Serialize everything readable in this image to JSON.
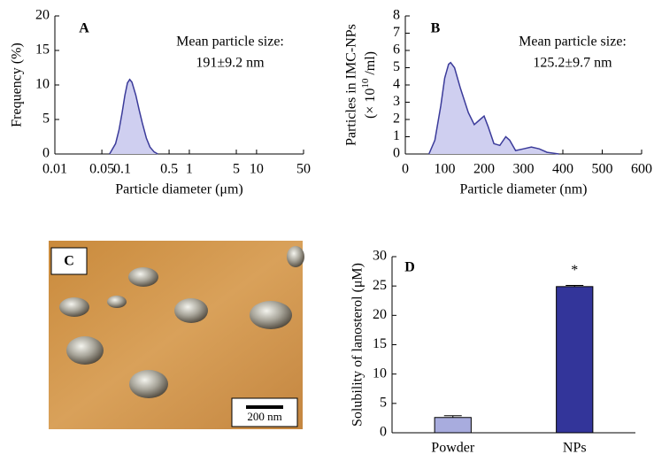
{
  "chart_data": [
    {
      "type": "area",
      "label": "A",
      "annotation": [
        "Mean particle size:",
        "191±9.2 nm"
      ],
      "xlabel": "Particle diameter (μm)",
      "ylabel": "Frequency (%)",
      "xscale": "log",
      "xlim": [
        0.01,
        50
      ],
      "xticks": [
        0.01,
        0.05,
        0.1,
        0.5,
        1,
        5,
        10,
        50
      ],
      "ylim": [
        0,
        20
      ],
      "yticks": [
        0,
        5,
        10,
        15,
        20
      ],
      "color": "#cfcff0",
      "line_color": "#3b3b9a",
      "x": [
        0.065,
        0.08,
        0.09,
        0.1,
        0.11,
        0.12,
        0.13,
        0.14,
        0.16,
        0.18,
        0.2,
        0.23,
        0.26,
        0.3,
        0.34
      ],
      "values": [
        0,
        1.5,
        3.5,
        6,
        8.5,
        10.3,
        10.8,
        10.4,
        8.5,
        6.3,
        4.5,
        2.3,
        1,
        0.3,
        0
      ]
    },
    {
      "type": "area",
      "label": "B",
      "annotation": [
        "Mean particle size:",
        "125.2±9.7 nm"
      ],
      "xlabel": "Particle diameter (nm)",
      "ylabel": "Particles in IMC-NPs",
      "ylabel_2": {
        "base": "(× 10",
        "sup": "10",
        "rest": " /ml)"
      },
      "xlim": [
        0,
        600
      ],
      "xticks": [
        0,
        100,
        200,
        300,
        400,
        500,
        600
      ],
      "ylim": [
        0,
        8
      ],
      "yticks": [
        0,
        1,
        2,
        3,
        4,
        5,
        6,
        7,
        8
      ],
      "color": "#cfcff0",
      "line_color": "#3b3b9a",
      "x": [
        60,
        75,
        90,
        100,
        110,
        115,
        125,
        140,
        160,
        175,
        190,
        200,
        210,
        225,
        240,
        255,
        265,
        280,
        300,
        320,
        340,
        360,
        390
      ],
      "values": [
        0,
        0.8,
        2.8,
        4.4,
        5.2,
        5.3,
        5.0,
        3.8,
        2.4,
        1.7,
        2.0,
        2.2,
        1.6,
        0.6,
        0.5,
        1.0,
        0.8,
        0.2,
        0.3,
        0.4,
        0.3,
        0.1,
        0
      ]
    },
    {
      "type": "bar",
      "label": "D",
      "ylabel": "Solubility of lanosterol (μM)",
      "categories": [
        "Powder",
        "NPs"
      ],
      "values": [
        2.6,
        24.9
      ],
      "errors": [
        0.3,
        0.2
      ],
      "colors": [
        "#a8acde",
        "#33359a"
      ],
      "annotation": "*",
      "ylim": [
        0,
        30
      ],
      "yticks": [
        0,
        5,
        10,
        15,
        20,
        25,
        30
      ]
    }
  ],
  "image_panel": {
    "label": "C",
    "scale_bar": "200 nm"
  }
}
